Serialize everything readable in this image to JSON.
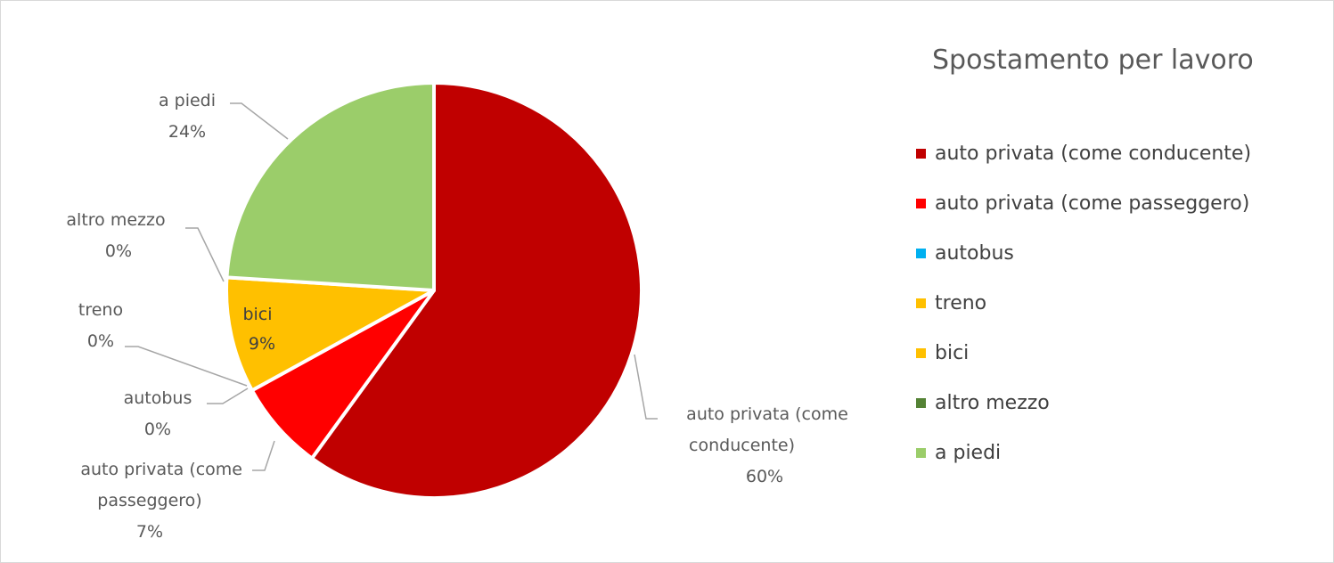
{
  "chart_data": {
    "type": "pie",
    "title": "Spostamento per lavoro",
    "legend_position": "right",
    "slices": [
      {
        "name": "auto privata (come conducente)",
        "value": 60,
        "label": "60%",
        "color": "#c00000"
      },
      {
        "name": "auto privata (come passeggero)",
        "value": 7,
        "label": "7%",
        "color": "#ff0000"
      },
      {
        "name": "autobus",
        "value": 0,
        "label": "0%",
        "color": "#00b0f0"
      },
      {
        "name": "treno",
        "value": 0,
        "label": "0%",
        "color": "#ffc000"
      },
      {
        "name": "bici",
        "value": 9,
        "label": "9%",
        "color": "#ffc000"
      },
      {
        "name": "altro mezzo",
        "value": 0,
        "label": "0%",
        "color": "#548235"
      },
      {
        "name": "a piedi",
        "value": 24,
        "label": "24%",
        "color": "#9bcd6a"
      }
    ]
  }
}
